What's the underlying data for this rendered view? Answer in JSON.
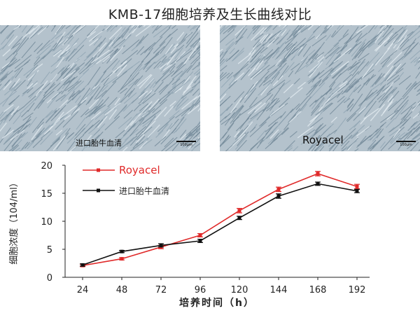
{
  "title": "KMB-17细胞培养及生长曲线对比",
  "panels": [
    {
      "caption": "进口胎牛血清",
      "scale_label": "100µm"
    },
    {
      "caption": "Royacel",
      "scale_label": "100µm"
    }
  ],
  "colors": {
    "royacel": "#e02a2a",
    "fbs": "#111111",
    "micro_bg": "#b4c2cc"
  },
  "chart_data": {
    "type": "line",
    "x": [
      24,
      48,
      72,
      96,
      120,
      144,
      168,
      192
    ],
    "xlabel": "培养时间（h）",
    "ylabel": "细胞浓度（104/ml）",
    "ylim": [
      0,
      20
    ],
    "yticks": [
      0,
      5,
      10,
      15,
      20
    ],
    "legend_position": "top-left",
    "series": [
      {
        "name": "Royacel",
        "color": "#e02a2a",
        "values": [
          2.1,
          3.3,
          5.4,
          7.5,
          11.9,
          15.7,
          18.5,
          16.2
        ],
        "errors": [
          0.2,
          0.2,
          0.3,
          0.3,
          0.4,
          0.4,
          0.4,
          0.4
        ]
      },
      {
        "name": "进口胎牛血清",
        "color": "#111111",
        "values": [
          2.2,
          4.6,
          5.7,
          6.5,
          10.6,
          14.5,
          16.7,
          15.4
        ],
        "errors": [
          0.2,
          0.2,
          0.3,
          0.3,
          0.3,
          0.4,
          0.3,
          0.3
        ]
      }
    ]
  }
}
